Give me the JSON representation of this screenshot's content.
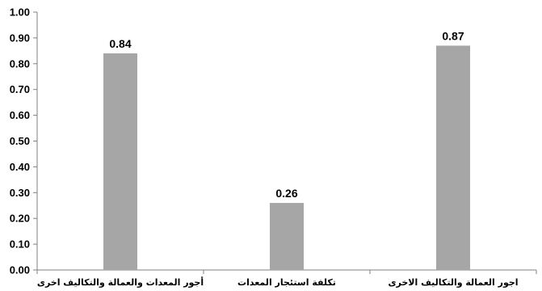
{
  "chart_data": {
    "type": "bar",
    "categories": [
      "أجور المعدات والعمالة والتكاليف اخرى",
      "تكلفة استئجار المعدات",
      "اجور العمالة والتكاليف الاخرى"
    ],
    "values": [
      0.84,
      0.26,
      0.87
    ],
    "value_labels": [
      "0.84",
      "0.26",
      "0.87"
    ],
    "yticks": [
      "0.00",
      "0.10",
      "0.20",
      "0.30",
      "0.40",
      "0.50",
      "0.60",
      "0.70",
      "0.80",
      "0.90",
      "1.00"
    ],
    "ylim": [
      0,
      1
    ],
    "grid": false,
    "legend": "none",
    "bar_color": "#a6a6a6",
    "axis_color": "#808080"
  }
}
